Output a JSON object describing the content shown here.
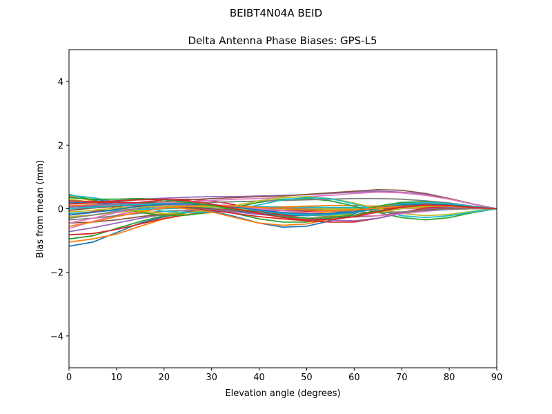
{
  "figure": {
    "suptitle": "BEIBT4N04A      BEID"
  },
  "chart_data": {
    "type": "line",
    "title": "Delta Antenna Phase Biases: GPS-L5",
    "xlabel": "Elevation angle (degrees)",
    "ylabel": "Bias from mean (mm)",
    "xlim": [
      0,
      90
    ],
    "ylim": [
      -5,
      5
    ],
    "xticks": [
      0,
      10,
      20,
      30,
      40,
      50,
      60,
      70,
      80,
      90
    ],
    "yticks": [
      -4,
      -2,
      0,
      2,
      4
    ],
    "ytick_labels": [
      "−4",
      "−2",
      "0",
      "2",
      "4"
    ],
    "grid": false,
    "legend": "none",
    "x": [
      0,
      5,
      10,
      15,
      20,
      25,
      30,
      35,
      40,
      45,
      50,
      55,
      60,
      65,
      70,
      75,
      80,
      85,
      90
    ],
    "series": [
      {
        "color": "#1f77b4",
        "values": [
          -1.18,
          -1.05,
          -0.75,
          -0.45,
          -0.25,
          -0.12,
          -0.05,
          -0.08,
          -0.15,
          -0.2,
          -0.22,
          -0.18,
          -0.1,
          0.02,
          0.1,
          0.12,
          0.08,
          0.03,
          0.0
        ]
      },
      {
        "color": "#ff7f0e",
        "values": [
          -1.05,
          -0.95,
          -0.8,
          -0.55,
          -0.32,
          -0.18,
          -0.08,
          -0.05,
          -0.08,
          -0.12,
          -0.14,
          -0.1,
          -0.04,
          0.05,
          0.12,
          0.14,
          0.1,
          0.04,
          0.0
        ]
      },
      {
        "color": "#2ca02c",
        "values": [
          -0.95,
          -0.85,
          -0.62,
          -0.4,
          -0.22,
          -0.12,
          -0.04,
          0.0,
          0.02,
          0.0,
          -0.04,
          -0.06,
          -0.02,
          0.06,
          0.12,
          0.14,
          0.1,
          0.04,
          0.0
        ]
      },
      {
        "color": "#d62728",
        "values": [
          -0.82,
          -0.78,
          -0.65,
          -0.48,
          -0.3,
          -0.18,
          -0.1,
          -0.06,
          -0.05,
          -0.06,
          -0.08,
          -0.06,
          0.0,
          0.06,
          0.1,
          0.1,
          0.07,
          0.03,
          0.0
        ]
      },
      {
        "color": "#9467bd",
        "values": [
          -0.72,
          -0.6,
          -0.45,
          -0.3,
          -0.18,
          -0.08,
          -0.02,
          0.02,
          0.04,
          0.04,
          0.02,
          0.0,
          0.02,
          0.06,
          0.08,
          0.08,
          0.06,
          0.02,
          0.0
        ]
      },
      {
        "color": "#8c564b",
        "values": [
          -0.45,
          -0.42,
          -0.35,
          -0.25,
          -0.16,
          -0.1,
          -0.06,
          -0.04,
          -0.04,
          -0.05,
          -0.06,
          -0.05,
          -0.02,
          0.02,
          0.05,
          0.06,
          0.04,
          0.02,
          0.0
        ]
      },
      {
        "color": "#e377c2",
        "values": [
          -0.62,
          -0.4,
          -0.2,
          -0.05,
          0.05,
          0.1,
          0.12,
          0.1,
          0.06,
          0.02,
          -0.02,
          -0.04,
          -0.04,
          -0.02,
          0.0,
          0.01,
          0.01,
          0.0,
          0.0
        ]
      },
      {
        "color": "#7f7f7f",
        "values": [
          -0.35,
          -0.3,
          -0.22,
          -0.14,
          -0.08,
          -0.04,
          -0.02,
          -0.01,
          0.0,
          0.0,
          0.0,
          0.0,
          0.01,
          0.02,
          0.03,
          0.03,
          0.02,
          0.01,
          0.0
        ]
      },
      {
        "color": "#bcbd22",
        "values": [
          -0.25,
          -0.2,
          -0.12,
          -0.05,
          0.0,
          0.03,
          0.05,
          0.05,
          0.04,
          0.02,
          0.0,
          -0.01,
          -0.01,
          0.0,
          0.02,
          0.02,
          0.02,
          0.01,
          0.0
        ]
      },
      {
        "color": "#17becf",
        "values": [
          -0.15,
          -0.1,
          -0.05,
          -0.02,
          0.0,
          0.02,
          0.04,
          0.05,
          0.06,
          0.06,
          0.05,
          0.04,
          0.04,
          0.04,
          0.04,
          0.03,
          0.02,
          0.01,
          0.0
        ]
      },
      {
        "color": "#1f77b4",
        "values": [
          0.35,
          0.3,
          0.22,
          0.18,
          0.16,
          0.15,
          0.12,
          0.05,
          -0.1,
          -0.18,
          -0.2,
          -0.15,
          -0.05,
          0.05,
          0.12,
          0.12,
          0.08,
          0.03,
          0.0
        ]
      },
      {
        "color": "#ff7f0e",
        "values": [
          0.4,
          0.25,
          0.05,
          -0.12,
          -0.2,
          -0.18,
          -0.12,
          -0.05,
          0.02,
          0.05,
          0.08,
          0.1,
          0.1,
          0.08,
          0.05,
          0.03,
          0.02,
          0.01,
          0.0
        ]
      },
      {
        "color": "#2ca02c",
        "values": [
          0.45,
          0.28,
          0.08,
          -0.12,
          -0.22,
          -0.2,
          -0.1,
          0.05,
          0.2,
          0.3,
          0.32,
          0.25,
          0.08,
          -0.12,
          -0.28,
          -0.35,
          -0.28,
          -0.12,
          0.0
        ]
      },
      {
        "color": "#d62728",
        "values": [
          -0.2,
          -0.1,
          0.05,
          0.2,
          0.28,
          0.3,
          0.25,
          0.12,
          -0.05,
          -0.2,
          -0.3,
          -0.3,
          -0.2,
          -0.05,
          0.08,
          0.15,
          0.12,
          0.05,
          0.0
        ]
      },
      {
        "color": "#9467bd",
        "values": [
          0.15,
          0.2,
          0.25,
          0.3,
          0.33,
          0.36,
          0.38,
          0.38,
          0.4,
          0.42,
          0.44,
          0.48,
          0.52,
          0.55,
          0.52,
          0.45,
          0.32,
          0.15,
          0.0
        ]
      },
      {
        "color": "#8c564b",
        "values": [
          0.05,
          0.08,
          0.12,
          0.18,
          0.22,
          0.28,
          0.32,
          0.35,
          0.38,
          0.4,
          0.45,
          0.5,
          0.55,
          0.6,
          0.58,
          0.48,
          0.32,
          0.15,
          0.0
        ]
      },
      {
        "color": "#e377c2",
        "values": [
          0.0,
          0.04,
          0.08,
          0.12,
          0.18,
          0.22,
          0.26,
          0.3,
          0.32,
          0.35,
          0.38,
          0.42,
          0.48,
          0.52,
          0.5,
          0.42,
          0.3,
          0.14,
          0.0
        ]
      },
      {
        "color": "#7f7f7f",
        "values": [
          0.1,
          0.12,
          0.14,
          0.15,
          0.16,
          0.18,
          0.2,
          0.22,
          0.24,
          0.26,
          0.28,
          0.3,
          0.32,
          0.32,
          0.3,
          0.25,
          0.18,
          0.08,
          0.0
        ]
      },
      {
        "color": "#bcbd22",
        "values": [
          0.3,
          0.2,
          0.05,
          -0.08,
          -0.15,
          -0.12,
          -0.05,
          0.1,
          0.25,
          0.35,
          0.38,
          0.32,
          0.18,
          0.0,
          -0.15,
          -0.22,
          -0.18,
          -0.08,
          0.0
        ]
      },
      {
        "color": "#17becf",
        "values": [
          0.42,
          0.35,
          0.2,
          0.05,
          -0.08,
          -0.12,
          -0.1,
          -0.02,
          0.12,
          0.28,
          0.35,
          0.32,
          0.15,
          -0.05,
          -0.22,
          -0.28,
          -0.22,
          -0.1,
          0.0
        ]
      },
      {
        "color": "#1f77b4",
        "values": [
          0.2,
          0.18,
          0.15,
          0.12,
          0.08,
          0.02,
          -0.08,
          -0.25,
          -0.45,
          -0.58,
          -0.55,
          -0.38,
          -0.15,
          0.05,
          0.18,
          0.2,
          0.14,
          0.06,
          0.0
        ]
      },
      {
        "color": "#ff7f0e",
        "values": [
          0.1,
          0.12,
          0.12,
          0.1,
          0.06,
          0.0,
          -0.1,
          -0.28,
          -0.45,
          -0.52,
          -0.48,
          -0.32,
          -0.12,
          0.05,
          0.15,
          0.18,
          0.12,
          0.05,
          0.0
        ]
      },
      {
        "color": "#2ca02c",
        "values": [
          0.25,
          0.22,
          0.2,
          0.18,
          0.14,
          0.08,
          0.0,
          -0.15,
          -0.32,
          -0.42,
          -0.42,
          -0.3,
          -0.1,
          0.08,
          0.2,
          0.22,
          0.16,
          0.07,
          0.0
        ]
      },
      {
        "color": "#d62728",
        "values": [
          0.15,
          0.18,
          0.2,
          0.18,
          0.12,
          0.05,
          -0.05,
          -0.15,
          -0.25,
          -0.32,
          -0.38,
          -0.42,
          -0.42,
          -0.3,
          -0.12,
          0.02,
          0.06,
          0.03,
          0.0
        ]
      },
      {
        "color": "#9467bd",
        "values": [
          0.05,
          0.1,
          0.15,
          0.15,
          0.12,
          0.05,
          -0.02,
          -0.1,
          -0.18,
          -0.24,
          -0.3,
          -0.36,
          -0.38,
          -0.3,
          -0.15,
          -0.02,
          0.04,
          0.02,
          0.0
        ]
      },
      {
        "color": "#8c564b",
        "values": [
          -0.05,
          0.02,
          0.08,
          0.1,
          0.08,
          0.04,
          0.0,
          -0.05,
          -0.1,
          -0.15,
          -0.2,
          -0.24,
          -0.26,
          -0.22,
          -0.12,
          -0.04,
          0.01,
          0.01,
          0.0
        ]
      },
      {
        "color": "#e377c2",
        "values": [
          -0.45,
          -0.3,
          -0.12,
          0.02,
          0.1,
          0.12,
          0.1,
          0.06,
          0.0,
          -0.06,
          -0.12,
          -0.18,
          -0.22,
          -0.22,
          -0.16,
          -0.08,
          -0.02,
          0.0,
          0.0
        ]
      },
      {
        "color": "#7f7f7f",
        "values": [
          -0.3,
          -0.2,
          -0.08,
          0.02,
          0.08,
          0.1,
          0.1,
          0.08,
          0.05,
          0.02,
          -0.02,
          -0.06,
          -0.1,
          -0.12,
          -0.1,
          -0.06,
          -0.02,
          0.0,
          0.0
        ]
      },
      {
        "color": "#bcbd22",
        "values": [
          -0.1,
          -0.05,
          0.02,
          0.06,
          0.08,
          0.08,
          0.06,
          0.02,
          -0.05,
          -0.12,
          -0.18,
          -0.22,
          -0.2,
          -0.12,
          0.0,
          0.08,
          0.08,
          0.04,
          0.0
        ]
      },
      {
        "color": "#17becf",
        "values": [
          0.0,
          0.05,
          0.1,
          0.14,
          0.16,
          0.16,
          0.12,
          0.05,
          -0.05,
          -0.15,
          -0.2,
          -0.2,
          -0.12,
          0.02,
          0.15,
          0.2,
          0.16,
          0.07,
          0.0
        ]
      },
      {
        "color": "#1f77b4",
        "values": [
          -0.2,
          -0.12,
          -0.02,
          0.08,
          0.14,
          0.15,
          0.12,
          0.05,
          -0.04,
          -0.12,
          -0.16,
          -0.16,
          -0.1,
          0.02,
          0.12,
          0.15,
          0.12,
          0.05,
          0.0
        ]
      },
      {
        "color": "#ff7f0e",
        "values": [
          -0.55,
          -0.42,
          -0.25,
          -0.1,
          0.02,
          0.08,
          0.1,
          0.08,
          0.04,
          0.0,
          -0.04,
          -0.06,
          -0.04,
          0.02,
          0.08,
          0.1,
          0.08,
          0.03,
          0.0
        ]
      },
      {
        "color": "#2ca02c",
        "values": [
          0.35,
          0.3,
          0.3,
          0.32,
          0.28,
          0.2,
          0.1,
          -0.02,
          -0.15,
          -0.25,
          -0.3,
          -0.28,
          -0.2,
          -0.08,
          0.05,
          0.12,
          0.1,
          0.04,
          0.0
        ]
      },
      {
        "color": "#d62728",
        "values": [
          0.25,
          0.22,
          0.25,
          0.28,
          0.3,
          0.25,
          0.15,
          0.0,
          -0.15,
          -0.28,
          -0.35,
          -0.34,
          -0.25,
          -0.1,
          0.05,
          0.12,
          0.1,
          0.04,
          0.0
        ]
      }
    ]
  }
}
